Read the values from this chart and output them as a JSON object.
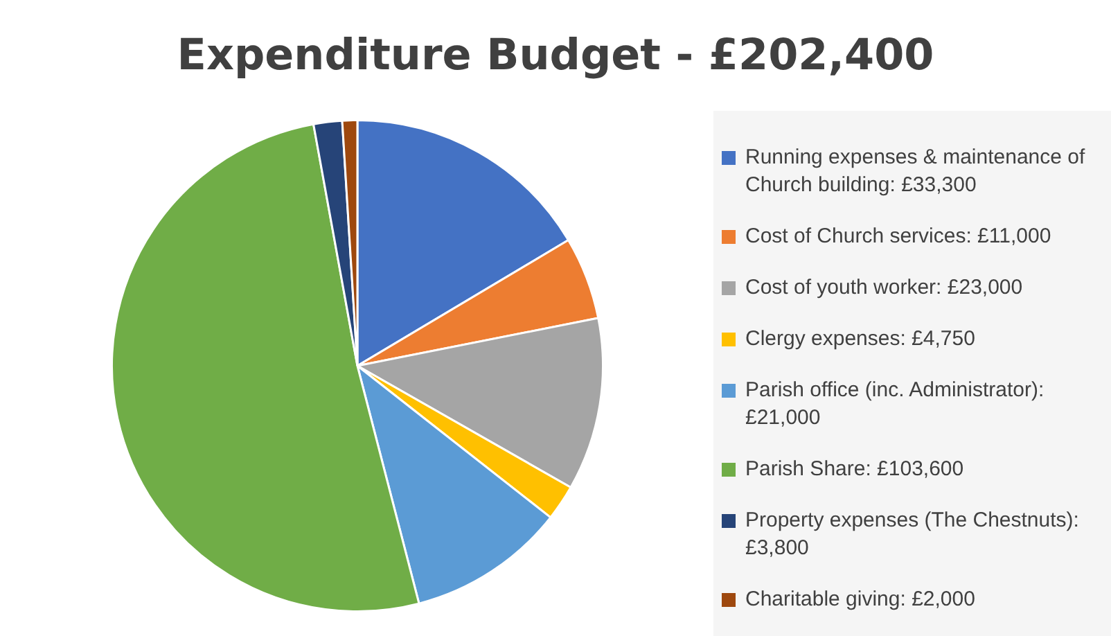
{
  "chart_data": {
    "type": "pie",
    "title": "Expenditure Budget - £202,400",
    "legend": "right",
    "categories": [
      "Running expenses & maintenance of Church building:  £33,300",
      "Cost of Church services:  £11,000",
      "Cost of youth worker:  £23,000",
      "Clergy expenses:  £4,750",
      "Parish office (inc. Administrator):  £21,000",
      "Parish Share:  £103,600",
      "Property expenses (The Chestnuts):  £3,800",
      "Charitable giving:  £2,000"
    ],
    "values": [
      33300,
      11000,
      23000,
      4750,
      21000,
      103600,
      3800,
      2000
    ],
    "colors": [
      "#4472c4",
      "#ed7d31",
      "#a5a5a5",
      "#ffc000",
      "#5b9bd5",
      "#70ad47",
      "#264478",
      "#9e480e"
    ]
  }
}
